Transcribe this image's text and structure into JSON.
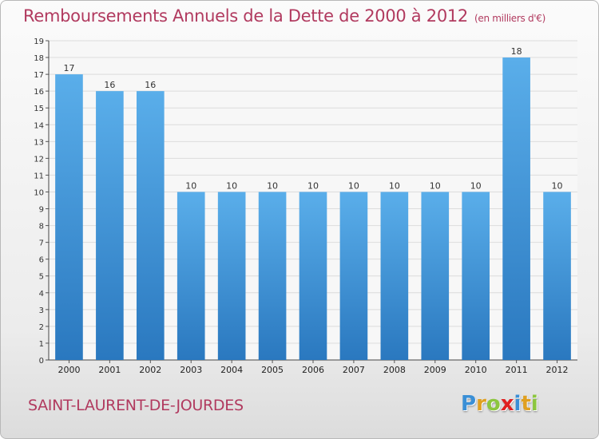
{
  "chart_data": {
    "type": "bar",
    "title": "Remboursements Annuels de la Dette de 2000 à 2012",
    "unit_note": "(en milliers d'€)",
    "categories": [
      "2000",
      "2001",
      "2002",
      "2003",
      "2004",
      "2005",
      "2006",
      "2007",
      "2008",
      "2009",
      "2010",
      "2011",
      "2012"
    ],
    "values": [
      17,
      16,
      16,
      10,
      10,
      10,
      10,
      10,
      10,
      10,
      10,
      18,
      10
    ],
    "ylim": [
      0,
      19
    ],
    "yticks": [
      0,
      1,
      2,
      3,
      4,
      5,
      6,
      7,
      8,
      9,
      10,
      11,
      12,
      13,
      14,
      15,
      16,
      17,
      18,
      19
    ],
    "grid": true,
    "bar_color": "#3a8fd6",
    "bar_color_light": "#5aaeea"
  },
  "commune": "SAINT-LAURENT-DE-JOURDES",
  "logo": {
    "letters": [
      "P",
      "r",
      "o",
      "x",
      "i",
      "t",
      "i"
    ],
    "colors": [
      "#3a8fd6",
      "#e0a020",
      "#8cc63e",
      "#e02020",
      "#3a8fd6",
      "#e0a020",
      "#8cc63e"
    ]
  }
}
